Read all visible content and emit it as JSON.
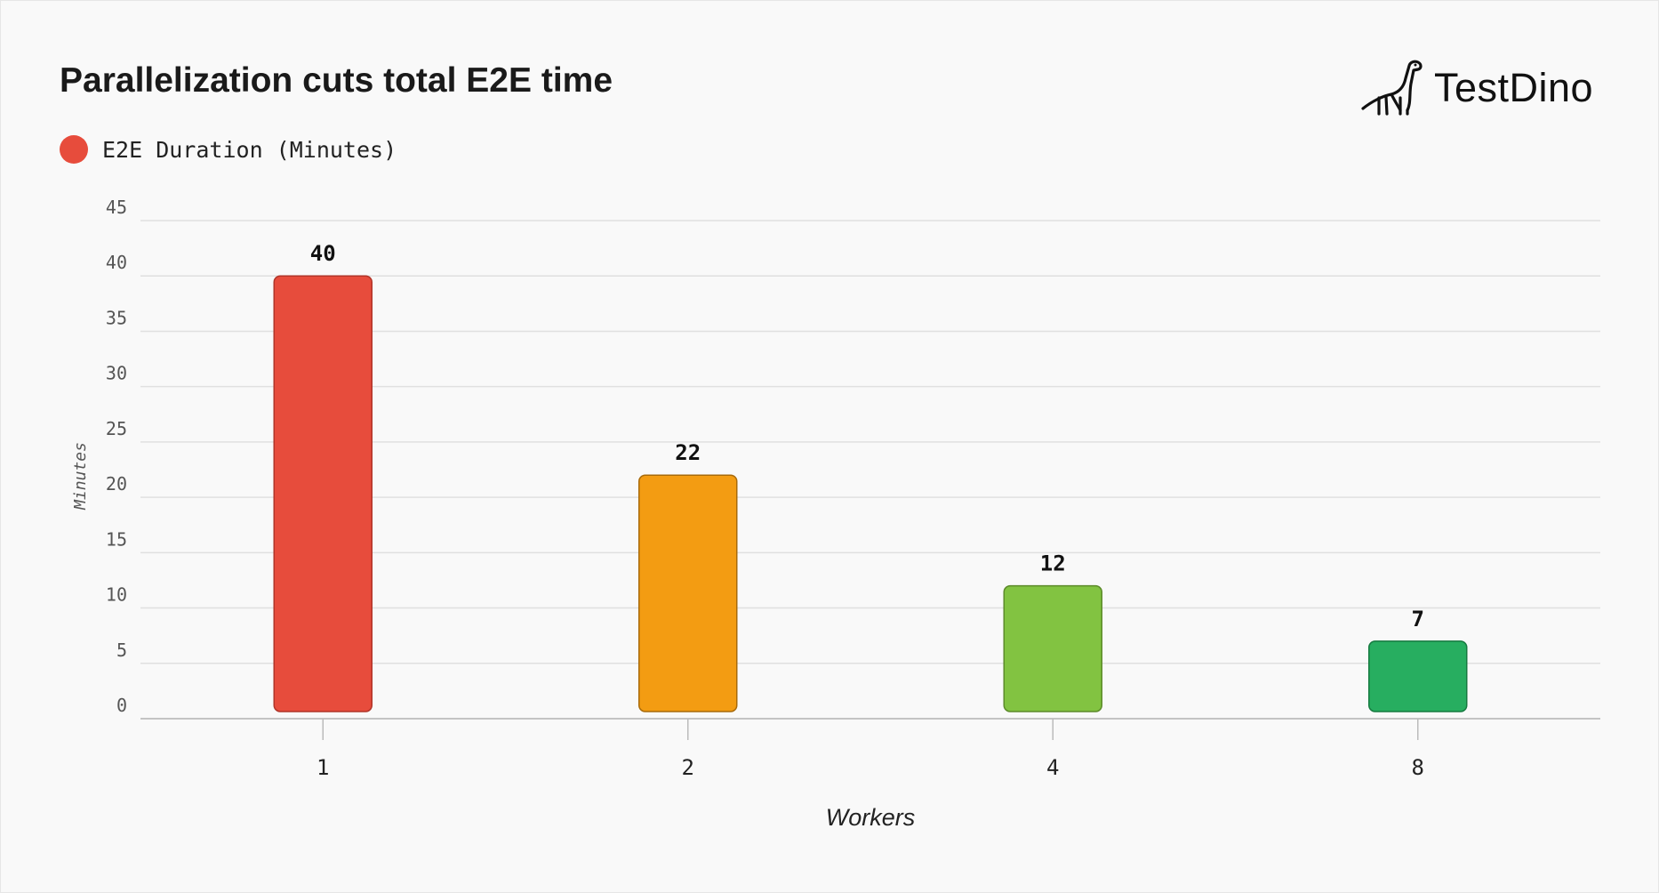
{
  "title": "Parallelization cuts total E2E time",
  "brand": {
    "name": "TestDino",
    "logo_icon": "dinosaur-icon"
  },
  "legend": {
    "label": "E2E Duration (Minutes)",
    "color": "#e74c3c"
  },
  "chart_data": {
    "type": "bar",
    "categories": [
      "1",
      "2",
      "4",
      "8"
    ],
    "series": [
      {
        "name": "E2E Duration (Minutes)",
        "values": [
          40,
          22,
          12,
          7
        ]
      }
    ],
    "bar_colors": [
      "#e74c3c",
      "#f39c12",
      "#82c341",
      "#27ae60"
    ],
    "bar_edge_colors": [
      "#b03428",
      "#a86a0a",
      "#5c8a2a",
      "#167a40"
    ],
    "xlabel": "Workers",
    "ylabel": "Minutes",
    "ylim": [
      0,
      45
    ],
    "yticks": [
      0,
      5,
      10,
      15,
      20,
      25,
      30,
      35,
      40,
      45
    ],
    "grid": true,
    "data_labels": true,
    "legend_position": "top-left"
  }
}
